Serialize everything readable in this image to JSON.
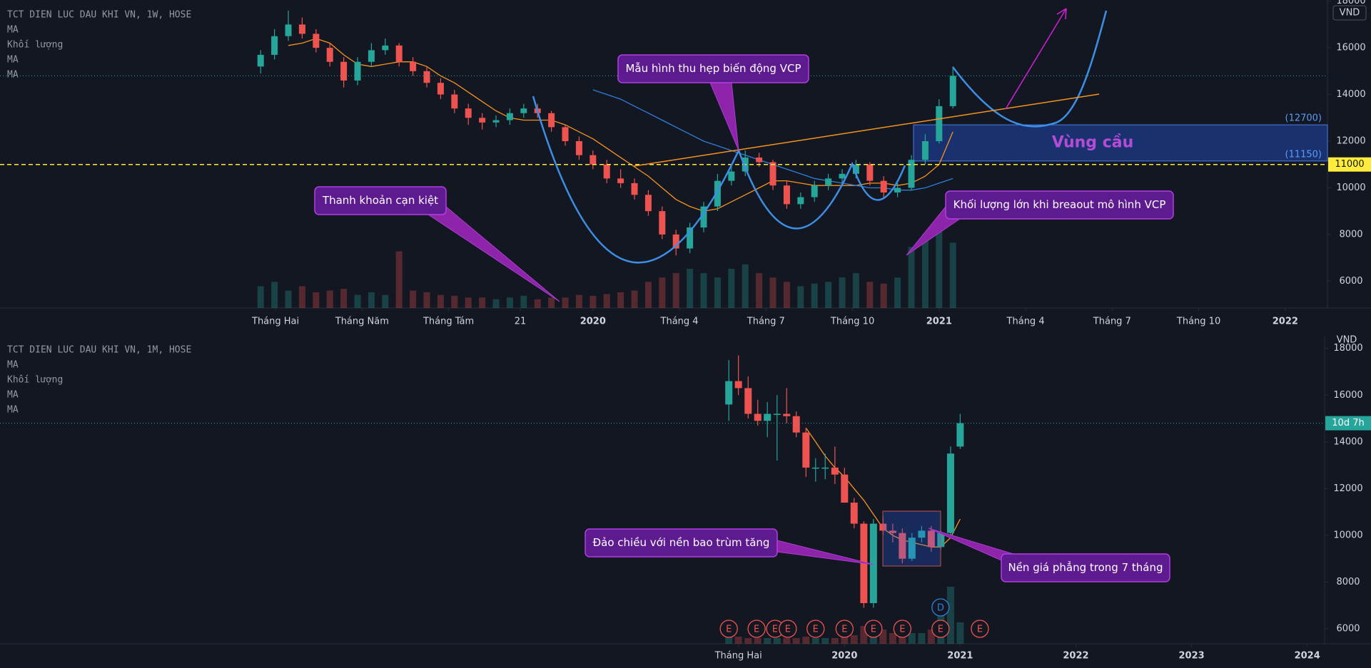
{
  "chart_data": [
    {
      "type": "candlestick",
      "title": "TCT DIEN LUC DAU KHI VN, 1W, HOSE",
      "legend": [
        "MA",
        "Khối lượng",
        "MA",
        "MA"
      ],
      "currency": "VND",
      "up_color": "#26a69a",
      "down_color": "#ef5350",
      "x": [
        2019.04,
        2019.08,
        2019.12,
        2019.16,
        2019.2,
        2019.24,
        2019.28,
        2019.32,
        2019.36,
        2019.4,
        2019.44,
        2019.48,
        2019.52,
        2019.56,
        2019.6,
        2019.64,
        2019.68,
        2019.72,
        2019.76,
        2019.8,
        2019.84,
        2019.88,
        2019.92,
        2019.96,
        2020,
        2020.04,
        2020.08,
        2020.12,
        2020.16,
        2020.2,
        2020.24,
        2020.28,
        2020.32,
        2020.36,
        2020.4,
        2020.44,
        2020.48,
        2020.52,
        2020.56,
        2020.6,
        2020.64,
        2020.68,
        2020.72,
        2020.76,
        2020.8,
        2020.84,
        2020.88,
        2020.92,
        2020.96,
        2021,
        2021.04
      ],
      "ohlc": [
        [
          15200,
          15900,
          14900,
          15700
        ],
        [
          15700,
          16800,
          15500,
          16500
        ],
        [
          16500,
          17600,
          16300,
          17000
        ],
        [
          17000,
          17300,
          16400,
          16600
        ],
        [
          16600,
          16800,
          15800,
          16000
        ],
        [
          16000,
          16200,
          15200,
          15400
        ],
        [
          15400,
          15600,
          14300,
          14600
        ],
        [
          14600,
          15600,
          14400,
          15400
        ],
        [
          15400,
          16200,
          15200,
          15900
        ],
        [
          15900,
          16400,
          15700,
          16100
        ],
        [
          16100,
          16200,
          15200,
          15400
        ],
        [
          15400,
          15600,
          14800,
          15000
        ],
        [
          15000,
          15200,
          14300,
          14500
        ],
        [
          14500,
          14700,
          13800,
          14000
        ],
        [
          14000,
          14200,
          13200,
          13400
        ],
        [
          13400,
          13600,
          12700,
          13000
        ],
        [
          13000,
          13200,
          12500,
          12800
        ],
        [
          12800,
          13100,
          12600,
          12900
        ],
        [
          12900,
          13400,
          12700,
          13200
        ],
        [
          13200,
          13600,
          13000,
          13400
        ],
        [
          13400,
          13600,
          13000,
          13200
        ],
        [
          13200,
          13300,
          12400,
          12600
        ],
        [
          12600,
          12700,
          11800,
          12000
        ],
        [
          12000,
          12200,
          11200,
          11400
        ],
        [
          11400,
          11600,
          10800,
          11000
        ],
        [
          11000,
          11200,
          10200,
          10400
        ],
        [
          10400,
          10800,
          10000,
          10200
        ],
        [
          10200,
          10400,
          9500,
          9700
        ],
        [
          9700,
          9900,
          8800,
          9000
        ],
        [
          9000,
          9200,
          7800,
          8000
        ],
        [
          8000,
          8200,
          7100,
          7400
        ],
        [
          7400,
          8500,
          7200,
          8300
        ],
        [
          8300,
          9400,
          8100,
          9200
        ],
        [
          9200,
          10600,
          9000,
          10300
        ],
        [
          10300,
          11000,
          10100,
          10700
        ],
        [
          10700,
          11600,
          10500,
          11300
        ],
        [
          11300,
          11500,
          10900,
          11100
        ],
        [
          11100,
          11200,
          9900,
          10100
        ],
        [
          10100,
          10300,
          9100,
          9300
        ],
        [
          9300,
          9800,
          9100,
          9600
        ],
        [
          9600,
          10300,
          9400,
          10100
        ],
        [
          10100,
          10600,
          9900,
          10400
        ],
        [
          10400,
          10800,
          10200,
          10600
        ],
        [
          10600,
          11200,
          10400,
          11000
        ],
        [
          11000,
          11100,
          10100,
          10300
        ],
        [
          10300,
          10500,
          9600,
          9800
        ],
        [
          9800,
          10200,
          9600,
          10000
        ],
        [
          10000,
          11400,
          9900,
          11200
        ],
        [
          11200,
          12300,
          11000,
          12000
        ],
        [
          12000,
          13800,
          11900,
          13500
        ],
        [
          13500,
          15200,
          13400,
          14800
        ]
      ],
      "volume": [
        25,
        30,
        20,
        25,
        18,
        20,
        22,
        15,
        18,
        15,
        65,
        20,
        18,
        15,
        14,
        12,
        12,
        10,
        12,
        14,
        10,
        12,
        12,
        15,
        14,
        16,
        18,
        20,
        30,
        35,
        40,
        45,
        40,
        35,
        45,
        50,
        40,
        35,
        30,
        25,
        28,
        30,
        35,
        40,
        30,
        28,
        35,
        70,
        85,
        90,
        75
      ],
      "series": [
        {
          "color": "#f7931e",
          "values": [
            null,
            null,
            16100,
            16200,
            16400,
            16200,
            15700,
            15300,
            15200,
            15300,
            15400,
            15400,
            15200,
            14800,
            14500,
            14100,
            13700,
            13300,
            13000,
            12900,
            12900,
            12900,
            12700,
            12400,
            12100,
            11700,
            11300,
            10900,
            10500,
            10000,
            9500,
            9200,
            9000,
            9100,
            9400,
            9700,
            10000,
            10300,
            10300,
            10200,
            10100,
            10100,
            10100,
            10100,
            10200,
            10200,
            10100,
            10200,
            10500,
            11000,
            12400
          ]
        },
        {
          "color": "#2f7fd8",
          "values": [
            null,
            null,
            null,
            null,
            null,
            null,
            null,
            null,
            null,
            null,
            null,
            null,
            null,
            null,
            null,
            null,
            null,
            null,
            null,
            null,
            null,
            null,
            null,
            null,
            14200,
            14000,
            13800,
            13500,
            13200,
            12900,
            12600,
            12300,
            12000,
            11800,
            11600,
            11400,
            11200,
            11000,
            10800,
            10600,
            10400,
            10300,
            10200,
            10100,
            10000,
            10000,
            9900,
            9900,
            10000,
            10200,
            10400
          ]
        }
      ],
      "xlim": [
        2018.287,
        2022.122
      ],
      "xticks": [
        {
          "value": 2019.083,
          "label": "Tháng Hai"
        },
        {
          "value": 2019.333,
          "label": "Tháng Năm"
        },
        {
          "value": 2019.583,
          "label": "Tháng Tám"
        },
        {
          "value": 2019.79,
          "label": "21"
        },
        2020,
        {
          "value": 2020.25,
          "label": "Tháng 4"
        },
        {
          "value": 2020.5,
          "label": "Tháng 7"
        },
        {
          "value": 2020.75,
          "label": "Tháng 10"
        },
        2021,
        {
          "value": 2021.25,
          "label": "Tháng 4"
        },
        {
          "value": 2021.5,
          "label": "Tháng 7"
        },
        {
          "value": 2021.75,
          "label": "Tháng 10"
        },
        2022
      ],
      "ylim": [
        4850,
        18050
      ],
      "yticks": [
        6000,
        8000,
        10000,
        12000,
        14000,
        16000,
        18000
      ],
      "last_price": 14800,
      "hline": {
        "value": 11000,
        "color": "#ffeb3b"
      },
      "zone": {
        "values": [
          12700,
          11150
        ],
        "value_labels": [
          "(12700)",
          "(11150)"
        ],
        "label": "Vùng cầu"
      },
      "annotations": [
        "Mẫu hình thu hẹp biến động VCP",
        "Thanh khoản cạn kiệt",
        "Khối lượng lớn khi breaout mô hình VCP"
      ]
    },
    {
      "type": "candlestick",
      "title": "TCT DIEN LUC DAU KHI VN, 1M, HOSE",
      "legend": [
        "MA",
        "Khối lượng",
        "MA",
        "MA"
      ],
      "currency": "VND",
      "up_color": "#26a69a",
      "down_color": "#ef5350",
      "x": [
        2019.0,
        2019.083,
        2019.167,
        2019.25,
        2019.333,
        2019.417,
        2019.5,
        2019.583,
        2019.667,
        2019.75,
        2019.833,
        2019.917,
        2020.0,
        2020.083,
        2020.167,
        2020.25,
        2020.333,
        2020.417,
        2020.5,
        2020.583,
        2020.667,
        2020.75,
        2020.833,
        2020.917,
        2021.0
      ],
      "ohlc": [
        [
          15600,
          17500,
          14900,
          16600
        ],
        [
          16600,
          17700,
          16000,
          16300
        ],
        [
          16300,
          16800,
          15000,
          15200
        ],
        [
          15200,
          15800,
          14700,
          14900
        ],
        [
          14900,
          15700,
          14200,
          15200
        ],
        [
          15200,
          16000,
          13200,
          15200
        ],
        [
          15200,
          16300,
          14800,
          15100
        ],
        [
          15100,
          15300,
          14200,
          14400
        ],
        [
          14400,
          14600,
          12500,
          12900
        ],
        [
          12900,
          13300,
          12300,
          12900
        ],
        [
          12900,
          13500,
          12400,
          12900
        ],
        [
          12900,
          13800,
          12200,
          12600
        ],
        [
          12600,
          12900,
          11400,
          11400
        ],
        [
          11400,
          11600,
          10300,
          10500
        ],
        [
          10500,
          10600,
          6900,
          7100
        ],
        [
          7100,
          10700,
          6900,
          10500
        ],
        [
          10500,
          10800,
          10000,
          10200
        ],
        [
          10200,
          10500,
          9700,
          10100
        ],
        [
          10100,
          10300,
          8800,
          9000
        ],
        [
          9000,
          10100,
          8900,
          9900
        ],
        [
          9900,
          10400,
          9700,
          10200
        ],
        [
          10200,
          10400,
          9300,
          9500
        ],
        [
          9500,
          10200,
          9400,
          10100
        ],
        [
          10100,
          13800,
          9900,
          13500
        ],
        [
          13800,
          15200,
          13700,
          14800
        ]
      ],
      "volume": [
        10,
        10,
        8,
        8,
        8,
        8,
        8,
        8,
        10,
        8,
        8,
        8,
        10,
        12,
        25,
        30,
        20,
        15,
        15,
        15,
        15,
        20,
        40,
        80,
        30
      ],
      "series": [
        {
          "color": "#f7931e",
          "values": [
            null,
            null,
            null,
            null,
            null,
            null,
            null,
            null,
            14600,
            14000,
            13400,
            12900,
            12500,
            12000,
            11500,
            10900,
            10300,
            10000,
            9800,
            9700,
            9600,
            9500,
            9500,
            9900,
            10700
          ]
        }
      ],
      "xlim": [
        2012.7,
        2024.15
      ],
      "xticks": [
        {
          "value": 2019.083,
          "label": "Tháng Hai"
        },
        2020,
        2021,
        2022,
        2023,
        2024
      ],
      "ylim": [
        5360,
        18510
      ],
      "yticks": [
        6000,
        8000,
        10000,
        12000,
        14000,
        16000,
        18000
      ],
      "last_price": 14800,
      "countdown": "10d 7h",
      "events": {
        "x": [
          2019.0,
          2019.24,
          2019.4,
          2019.51,
          2019.75,
          2020.0,
          2020.25,
          2020.5,
          2020.83,
          2021.17
        ],
        "labels": [
          "E",
          "E",
          "E",
          "E",
          "E",
          "E",
          "E",
          "E",
          "E",
          "E"
        ]
      },
      "dividends": {
        "x": [
          2020.83
        ],
        "labels": [
          "D"
        ]
      },
      "annotations": [
        "Đảo chiều với nền bao trùm tăng",
        "Nền giá phẳng trong 7 tháng"
      ]
    }
  ]
}
